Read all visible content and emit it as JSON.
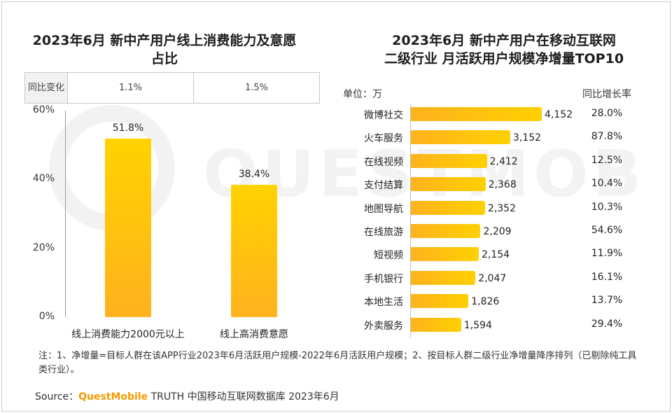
{
  "left_chart": {
    "title": "2023年6月 新中产用户线上消费能力及意愿占比",
    "yoy_header": "同比变化",
    "yoy_values": [
      "1.1%",
      "1.5%"
    ]
  },
  "right_chart": {
    "title_line1": "2023年6月 新中产用户在移动互联网",
    "title_line2": "二级行业 月活跃用户规模净增量TOP10",
    "unit_label": "单位：万",
    "growth_header": "同比增长率"
  },
  "chart_data": [
    {
      "type": "bar",
      "orientation": "vertical",
      "title": "2023年6月 新中产用户线上消费能力及意愿占比",
      "categories": [
        "线上消费能力2000元以上",
        "线上高消费意愿"
      ],
      "values": [
        51.8,
        38.4
      ],
      "value_labels": [
        "51.8%",
        "38.4%"
      ],
      "ylim": [
        0,
        60
      ],
      "yticks": [
        "0%",
        "20%",
        "40%",
        "60%"
      ],
      "ytick_values": [
        0,
        20,
        40,
        60
      ]
    },
    {
      "type": "bar",
      "orientation": "horizontal",
      "title": "2023年6月 新中产用户在移动互联网二级行业 月活跃用户规模净增量TOP10",
      "unit": "万",
      "categories": [
        "微博社交",
        "火车服务",
        "在线视频",
        "支付结算",
        "地图导航",
        "在线旅游",
        "短视频",
        "手机银行",
        "本地生活",
        "外卖服务"
      ],
      "values": [
        4152,
        3152,
        2412,
        2368,
        2352,
        2209,
        2154,
        2047,
        1826,
        1594
      ],
      "value_labels": [
        "4,152",
        "3,152",
        "2,412",
        "2,368",
        "2,352",
        "2,209",
        "2,154",
        "2,047",
        "1,826",
        "1,594"
      ],
      "growth_rates": [
        "28.0%",
        "87.8%",
        "12.5%",
        "10.4%",
        "10.3%",
        "54.6%",
        "11.9%",
        "16.1%",
        "13.7%",
        "29.4%"
      ]
    }
  ],
  "note": "注：1、净增量=目标人群在该APP行业2023年6月活跃用户规模-2022年6月活跃用户规模；2、按目标人群二级行业净增量降序排列（已剔除纯工具类行业）。",
  "source": {
    "prefix": "Source：",
    "brand": "QuestMobile",
    "suffix": " TRUTH 中国移动互联网数据库 2023年6月"
  },
  "watermark_text": "QUESTMOBILE",
  "colors": {
    "bar_top": "#ffd200",
    "bar_bottom": "#ffb21e",
    "brand": "#f59a00"
  }
}
